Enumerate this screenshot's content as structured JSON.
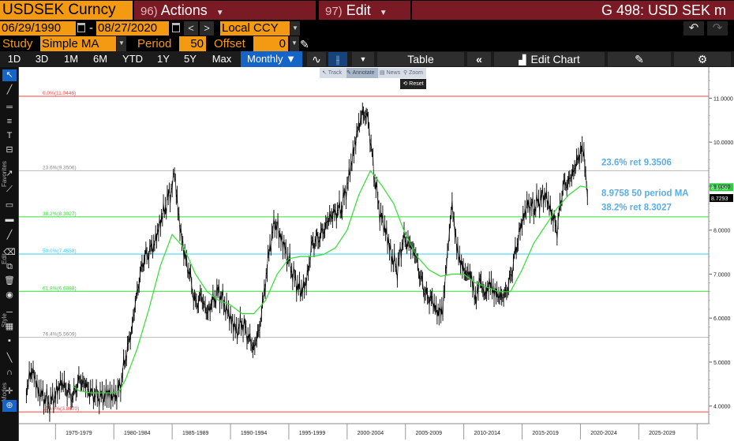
{
  "header": {
    "ticker": "USDSEK Curncy",
    "actions": {
      "num": "96)",
      "label": "Actions"
    },
    "edit": {
      "num": "97)",
      "label": "Edit"
    },
    "title": "G 498: USD SEK m"
  },
  "date_bar": {
    "start": "06/29/1990",
    "end": "08/27/2020",
    "dash": "-",
    "currency": "Local CCY",
    "prev": "<",
    "next": ">",
    "undo": "↶",
    "redo": "↷"
  },
  "study_bar": {
    "study_label": "Study",
    "study_value": "Simple MA",
    "period_label": "Period",
    "period_value": "50",
    "offset_label": "Offset",
    "offset_value": "0"
  },
  "toolbar": {
    "ranges": [
      "1D",
      "3D",
      "1M",
      "6M",
      "YTD",
      "1Y",
      "5Y",
      "Max"
    ],
    "frequency": "Monthly ▼",
    "table": "Table",
    "collapse": "«",
    "edit_chart": "Edit Chart",
    "gear": "⚙"
  },
  "overlay": {
    "track": "Track",
    "annotate": "Annotate",
    "news": "News",
    "zoom": "Zoom",
    "reset": "Reset"
  },
  "left_toolbar": {
    "favorites": "Favorites",
    "edit": "Edit",
    "style": "Style",
    "modes": "Modes"
  },
  "chart_data": {
    "type": "line",
    "title": "",
    "xlabel": "",
    "ylabel": "",
    "ylim": [
      3.6,
      11.6
    ],
    "yticks": [
      4.0,
      5.0,
      6.0,
      7.0,
      8.0,
      9.0,
      10.0,
      11.0
    ],
    "ytick_labels": [
      "4.0000",
      "5.0000",
      "6.0000",
      "7.0000",
      "8.0000",
      "9.0000",
      "10.0000",
      "11.0000"
    ],
    "xlim": [
      1972,
      2031
    ],
    "period_labels": [
      {
        "x": 1977,
        "label": "1975-1979"
      },
      {
        "x": 1982,
        "label": "1980-1984"
      },
      {
        "x": 1987,
        "label": "1985-1989"
      },
      {
        "x": 1992,
        "label": "1990-1994"
      },
      {
        "x": 1997,
        "label": "1995-1999"
      },
      {
        "x": 2002,
        "label": "2000-2004"
      },
      {
        "x": 2007,
        "label": "2005-2009"
      },
      {
        "x": 2012,
        "label": "2010-2014"
      },
      {
        "x": 2017,
        "label": "2015-2019"
      },
      {
        "x": 2022,
        "label": "2020-2024"
      },
      {
        "x": 2027,
        "label": "2025-2029"
      }
    ],
    "fib_levels": [
      {
        "value": 11.0446,
        "label": "0.0%(11.0446)",
        "color": "#ff4040"
      },
      {
        "value": 9.3506,
        "label": "23.6%(9.3506)",
        "color": "#bbbbbb"
      },
      {
        "value": 8.3027,
        "label": "38.2%(8.3027)",
        "color": "#33dd33"
      },
      {
        "value": 7.4558,
        "label": "50.0%(7.4558)",
        "color": "#33ccff"
      },
      {
        "value": 6.6088,
        "label": "61.8%(6.6088)",
        "color": "#33dd33"
      },
      {
        "value": 5.5609,
        "label": "76.4%(5.5609)",
        "color": "#bbbbbb"
      },
      {
        "value": 3.867,
        "label": "100.0%(3.8670)",
        "color": "#ff4040"
      }
    ],
    "annotations": [
      {
        "text": "23.6% ret 9.3506",
        "value": 9.55
      },
      {
        "text": "8.9758 50 period MA",
        "value": 8.85
      },
      {
        "text": "38.2% ret 8.3027",
        "value": 8.52
      }
    ],
    "last_labels": [
      {
        "value": 8.9758,
        "label": "8.9758",
        "color": "#2ecc40"
      },
      {
        "value": 8.7293,
        "label": "8.7293",
        "color": "#000000"
      }
    ],
    "series": [
      {
        "name": "USDSEK",
        "color": "#000000",
        "x": [
          1972.5,
          1973.0,
          1973.5,
          1974.0,
          1974.5,
          1975.0,
          1975.5,
          1976.0,
          1976.5,
          1977.0,
          1977.5,
          1978.0,
          1978.5,
          1979.0,
          1979.5,
          1980.0,
          1980.5,
          1981.0,
          1981.5,
          1982.0,
          1982.5,
          1983.0,
          1983.5,
          1984.0,
          1984.5,
          1985.0,
          1985.2,
          1985.5,
          1986.0,
          1986.5,
          1987.0,
          1987.5,
          1988.0,
          1988.5,
          1989.0,
          1989.5,
          1990.0,
          1990.5,
          1991.0,
          1991.5,
          1992.0,
          1992.5,
          1992.9,
          1993.3,
          1993.8,
          1994.5,
          1995.0,
          1995.5,
          1996.0,
          1996.5,
          1997.0,
          1997.5,
          1998.0,
          1998.5,
          1999.0,
          1999.5,
          2000.0,
          2000.5,
          2000.9,
          2001.4,
          2001.8,
          2002.3,
          2002.8,
          2003.3,
          2003.8,
          2004.3,
          2004.8,
          2005.3,
          2005.8,
          2006.3,
          2006.8,
          2007.3,
          2007.8,
          2008.2,
          2008.6,
          2009.0,
          2009.4,
          2009.8,
          2010.2,
          2010.6,
          2011.0,
          2011.4,
          2011.8,
          2012.2,
          2012.6,
          2013.0,
          2013.5,
          2014.0,
          2014.5,
          2015.0,
          2015.5,
          2016.0,
          2016.5,
          2017.0,
          2017.5,
          2018.0,
          2018.5,
          2019.0,
          2019.5,
          2020.0,
          2020.3,
          2020.6
        ],
        "values": [
          4.4,
          4.85,
          4.35,
          4.2,
          4.05,
          4.25,
          4.55,
          4.35,
          4.2,
          4.6,
          4.5,
          4.3,
          4.25,
          4.2,
          4.3,
          4.2,
          4.4,
          5.1,
          5.7,
          6.6,
          7.3,
          7.5,
          7.7,
          8.2,
          8.6,
          9.0,
          9.3,
          8.4,
          7.5,
          7.0,
          6.3,
          6.5,
          6.1,
          6.4,
          6.6,
          6.3,
          6.0,
          5.7,
          5.9,
          5.6,
          5.3,
          5.8,
          6.6,
          7.5,
          8.2,
          7.7,
          7.3,
          6.9,
          6.6,
          6.8,
          7.7,
          7.8,
          8.0,
          8.3,
          8.4,
          8.5,
          9.0,
          9.7,
          10.3,
          10.7,
          10.5,
          9.3,
          8.4,
          8.0,
          7.4,
          7.1,
          7.8,
          7.7,
          7.5,
          6.9,
          6.5,
          6.4,
          6.1,
          6.2,
          7.5,
          8.6,
          7.6,
          7.2,
          7.0,
          7.0,
          6.4,
          6.9,
          6.5,
          6.8,
          6.6,
          6.5,
          6.5,
          6.9,
          7.6,
          8.2,
          8.6,
          8.5,
          8.7,
          8.8,
          8.4,
          8.0,
          9.0,
          9.1,
          9.4,
          9.8,
          9.7,
          8.75
        ]
      },
      {
        "name": "50 period MA",
        "color": "#33dd33",
        "x": [
          1976.5,
          1977.0,
          1978.0,
          1979.0,
          1980.0,
          1980.5,
          1981.0,
          1982.0,
          1983.0,
          1984.0,
          1985.0,
          1986.0,
          1987.0,
          1988.0,
          1989.0,
          1990.0,
          1991.0,
          1992.0,
          1993.0,
          1994.0,
          1995.0,
          1996.0,
          1997.0,
          1998.0,
          1999.0,
          2000.0,
          2001.0,
          2002.0,
          2003.0,
          2004.0,
          2005.0,
          2006.0,
          2007.0,
          2008.0,
          2009.0,
          2010.0,
          2011.0,
          2012.0,
          2013.0,
          2014.0,
          2015.0,
          2016.0,
          2017.0,
          2018.0,
          2019.0,
          2020.0,
          2020.6
        ],
        "values": [
          4.45,
          4.35,
          4.3,
          4.3,
          4.3,
          4.35,
          4.6,
          5.3,
          6.2,
          7.2,
          7.9,
          7.6,
          7.0,
          6.6,
          6.4,
          6.3,
          6.1,
          6.1,
          6.4,
          7.0,
          7.35,
          7.4,
          7.4,
          7.45,
          7.6,
          8.0,
          8.8,
          9.35,
          9.0,
          8.6,
          7.9,
          7.4,
          7.1,
          6.95,
          7.0,
          7.0,
          6.8,
          6.7,
          6.6,
          6.6,
          7.1,
          7.7,
          8.1,
          8.5,
          8.8,
          9.0,
          8.97
        ]
      }
    ]
  },
  "colors": {
    "brand_orange": "#f39a12",
    "header_red": "#7a1a24",
    "active_blue": "#1565c8",
    "annotation_blue": "#5aaee8"
  }
}
